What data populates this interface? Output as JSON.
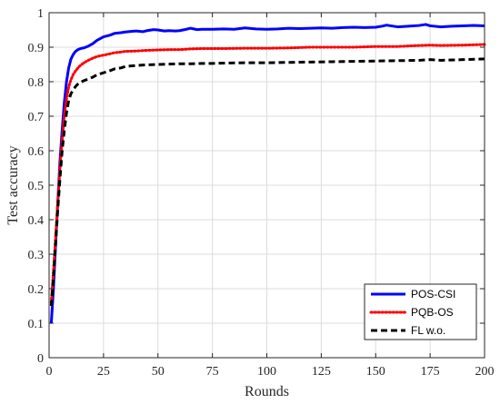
{
  "chart_data": {
    "type": "line",
    "xlabel": "Rounds",
    "ylabel": "Test accuracy",
    "xlim": [
      0,
      200
    ],
    "ylim": [
      0,
      1
    ],
    "x_ticks": [
      0,
      25,
      50,
      75,
      100,
      125,
      150,
      175,
      200
    ],
    "y_ticks": [
      0,
      0.1,
      0.2,
      0.3,
      0.4,
      0.5,
      0.6,
      0.7,
      0.8,
      0.9,
      1
    ],
    "grid": true,
    "legend_position": "bottom-right",
    "series": [
      {
        "name": "POS-CSI",
        "color": "#0000ff",
        "line_style": "solid",
        "x": [
          1,
          2,
          3,
          4,
          5,
          6,
          7,
          8,
          9,
          10,
          11,
          12,
          13,
          14,
          15,
          16,
          18,
          20,
          22,
          25,
          28,
          30,
          33,
          35,
          38,
          40,
          43,
          45,
          48,
          50,
          53,
          55,
          58,
          60,
          63,
          65,
          68,
          70,
          75,
          80,
          85,
          90,
          95,
          100,
          105,
          110,
          115,
          120,
          125,
          130,
          135,
          140,
          145,
          150,
          153,
          155,
          160,
          165,
          170,
          173,
          175,
          180,
          185,
          190,
          195,
          200
        ],
        "y": [
          0.1,
          0.2,
          0.33,
          0.45,
          0.57,
          0.66,
          0.74,
          0.8,
          0.84,
          0.865,
          0.878,
          0.887,
          0.892,
          0.895,
          0.897,
          0.898,
          0.903,
          0.91,
          0.92,
          0.93,
          0.935,
          0.94,
          0.942,
          0.944,
          0.946,
          0.947,
          0.945,
          0.948,
          0.951,
          0.95,
          0.947,
          0.948,
          0.947,
          0.948,
          0.952,
          0.955,
          0.951,
          0.952,
          0.952,
          0.953,
          0.952,
          0.956,
          0.953,
          0.952,
          0.953,
          0.955,
          0.954,
          0.955,
          0.956,
          0.955,
          0.957,
          0.958,
          0.957,
          0.958,
          0.961,
          0.964,
          0.959,
          0.961,
          0.963,
          0.966,
          0.962,
          0.959,
          0.961,
          0.962,
          0.963,
          0.962
        ]
      },
      {
        "name": "PQB-OS",
        "color": "#ff0000",
        "line_style": "dotted",
        "x": [
          1,
          2,
          3,
          4,
          5,
          6,
          7,
          8,
          9,
          10,
          11,
          12,
          13,
          14,
          15,
          16,
          18,
          20,
          22,
          25,
          28,
          30,
          33,
          35,
          40,
          45,
          50,
          55,
          60,
          65,
          70,
          75,
          80,
          90,
          100,
          110,
          120,
          130,
          140,
          150,
          160,
          170,
          175,
          180,
          190,
          200
        ],
        "y": [
          0.16,
          0.25,
          0.35,
          0.45,
          0.55,
          0.63,
          0.7,
          0.75,
          0.785,
          0.805,
          0.82,
          0.83,
          0.838,
          0.845,
          0.85,
          0.855,
          0.862,
          0.868,
          0.873,
          0.877,
          0.881,
          0.884,
          0.886,
          0.888,
          0.889,
          0.891,
          0.892,
          0.893,
          0.893,
          0.895,
          0.896,
          0.896,
          0.896,
          0.897,
          0.897,
          0.898,
          0.9,
          0.9,
          0.9,
          0.902,
          0.902,
          0.905,
          0.906,
          0.905,
          0.906,
          0.908
        ]
      },
      {
        "name": "FL w.o.",
        "color": "#000000",
        "line_style": "dashed",
        "x": [
          1,
          2,
          3,
          4,
          5,
          6,
          7,
          8,
          9,
          10,
          11,
          12,
          13,
          14,
          15,
          16,
          18,
          20,
          22,
          25,
          28,
          30,
          33,
          35,
          40,
          45,
          50,
          55,
          60,
          65,
          70,
          75,
          80,
          90,
          100,
          110,
          120,
          130,
          140,
          150,
          160,
          170,
          175,
          180,
          190,
          200
        ],
        "y": [
          0.15,
          0.23,
          0.33,
          0.43,
          0.52,
          0.6,
          0.66,
          0.71,
          0.745,
          0.765,
          0.775,
          0.785,
          0.792,
          0.797,
          0.8,
          0.803,
          0.808,
          0.813,
          0.82,
          0.826,
          0.832,
          0.837,
          0.84,
          0.844,
          0.847,
          0.849,
          0.85,
          0.851,
          0.852,
          0.852,
          0.853,
          0.853,
          0.854,
          0.855,
          0.855,
          0.856,
          0.857,
          0.858,
          0.859,
          0.86,
          0.861,
          0.862,
          0.864,
          0.862,
          0.864,
          0.866
        ]
      }
    ]
  }
}
